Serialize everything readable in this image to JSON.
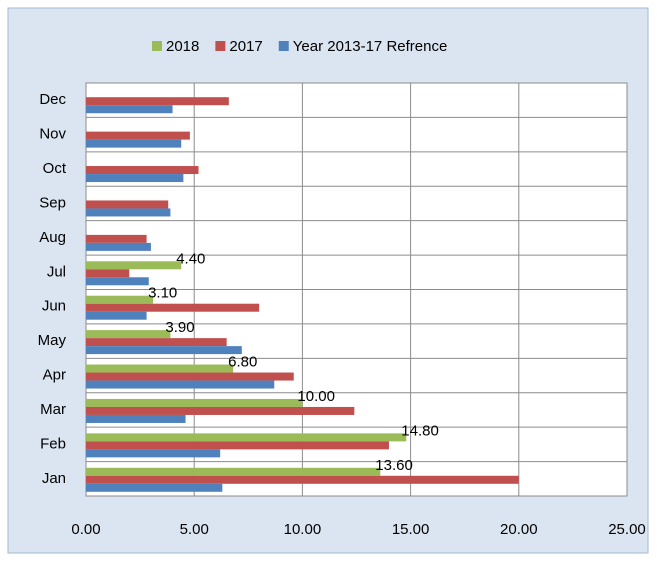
{
  "chart_data": {
    "type": "hbar",
    "categories": [
      "Jan",
      "Feb",
      "Mar",
      "Apr",
      "May",
      "Jun",
      "Jul",
      "Aug",
      "Sep",
      "Oct",
      "Nov",
      "Dec"
    ],
    "series": [
      {
        "name": "2018",
        "color": "#9bbb59",
        "values": [
          13.6,
          14.8,
          10.0,
          6.8,
          3.9,
          3.1,
          4.4,
          null,
          null,
          null,
          null,
          null
        ],
        "value_labels": [
          "13.60",
          "14.80",
          "10.00",
          "6.80",
          "3.90",
          "3.10",
          "4.40",
          null,
          null,
          null,
          null,
          null
        ]
      },
      {
        "name": "2017",
        "color": "#c0504d",
        "values": [
          20.0,
          14.0,
          12.4,
          9.6,
          6.5,
          8.0,
          2.0,
          2.8,
          3.8,
          5.2,
          4.8,
          6.6
        ]
      },
      {
        "name": "Year 2013-17 Refrence",
        "color": "#4f81bd",
        "values": [
          6.3,
          6.2,
          4.6,
          8.7,
          7.2,
          2.8,
          2.9,
          3.0,
          3.9,
          4.5,
          4.4,
          4.0
        ]
      }
    ],
    "xlim": [
      0,
      25
    ],
    "xticks": [
      {
        "value": 0,
        "label": "0.00"
      },
      {
        "value": 5,
        "label": "5.00"
      },
      {
        "value": 10,
        "label": "10.00"
      },
      {
        "value": 15,
        "label": "15.00"
      },
      {
        "value": 20,
        "label": "20.00"
      },
      {
        "value": 25,
        "label": "25.00"
      }
    ],
    "grid": true,
    "legend": "top"
  }
}
